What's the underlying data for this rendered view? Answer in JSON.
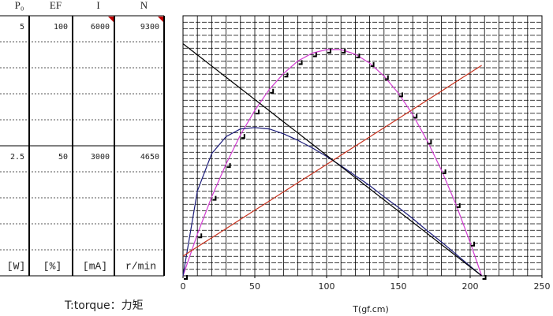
{
  "chart_data": {
    "type": "line",
    "xlabel": "T(gf.cm)",
    "footnote": "T:torque：力矩",
    "x": [
      0,
      10,
      20,
      30,
      40,
      50,
      60,
      70,
      80,
      90,
      100,
      110,
      120,
      130,
      140,
      150,
      160,
      170,
      180,
      190,
      200,
      208
    ],
    "xlim": [
      0,
      250
    ],
    "xticks": [
      0,
      50,
      100,
      150,
      200,
      250
    ],
    "series": [
      {
        "name": "P₀",
        "unit": "[W]",
        "color": "#d23cd2",
        "markers": true,
        "ylim": [
          0,
          5
        ],
        "yticks": [
          2.5,
          5
        ],
        "values": [
          0,
          0.8,
          1.52,
          2.15,
          2.71,
          3.18,
          3.58,
          3.89,
          4.13,
          4.28,
          4.35,
          4.35,
          4.26,
          4.09,
          3.84,
          3.51,
          3.1,
          2.6,
          2.03,
          1.38,
          0.64,
          0
        ]
      },
      {
        "name": "EF",
        "unit": "[%]",
        "color": "#1c1c7a",
        "markers": false,
        "ylim": [
          0,
          100
        ],
        "yticks": [
          50,
          100
        ],
        "values": [
          0,
          32.6,
          47,
          53.5,
          56.5,
          57,
          56.5,
          54.6,
          52.1,
          49.2,
          45.9,
          42.3,
          38.5,
          34.7,
          30.4,
          26.3,
          22,
          17.4,
          13,
          8.4,
          3.7,
          0
        ]
      },
      {
        "name": "I",
        "unit": "[mA]",
        "color": "#c8321e",
        "markers": false,
        "ylim": [
          0,
          6000
        ],
        "yticks": [
          3000,
          6000
        ],
        "values": [
          455,
          667,
          878,
          1090,
          1301,
          1513,
          1724,
          1936,
          2147,
          2359,
          2570,
          2782,
          2993,
          3205,
          3416,
          3628,
          3839,
          4051,
          4262,
          4474,
          4685,
          4855
        ]
      },
      {
        "name": "N",
        "unit": "r/min",
        "color": "#000000",
        "markers": false,
        "ylim": [
          0,
          9300
        ],
        "yticks": [
          4650,
          9300
        ],
        "values": [
          8300,
          7901,
          7502,
          7103,
          6704,
          6305,
          5906,
          5507,
          5108,
          4709,
          4310,
          3911,
          3512,
          3113,
          2713,
          2314,
          1915,
          1516,
          1117,
          718,
          319,
          0
        ]
      }
    ]
  }
}
